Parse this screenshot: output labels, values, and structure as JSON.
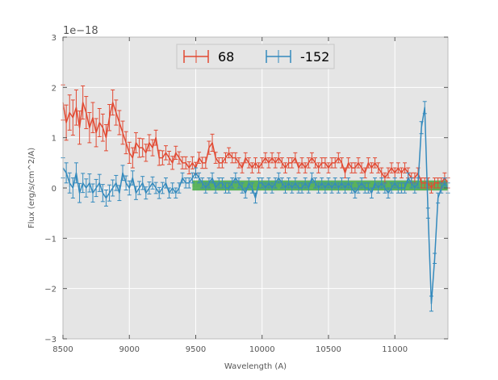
{
  "chart_data": {
    "type": "line",
    "title": "",
    "xlabel": "Wavelength (A)",
    "ylabel": "Flux (erg/s/cm^2/A)",
    "y_offset_text": "1e−18",
    "xlim": [
      8500,
      11400
    ],
    "ylim": [
      -3,
      3
    ],
    "x_ticks": [
      8500,
      9000,
      9500,
      10000,
      10500,
      11000
    ],
    "y_ticks": [
      -3,
      -2,
      -1,
      0,
      1,
      2,
      3
    ],
    "x_tick_labels": [
      "8500",
      "9000",
      "9500",
      "10000",
      "10500",
      "11000"
    ],
    "y_tick_labels": [
      "−3",
      "−2",
      "−1",
      "0",
      "1",
      "2",
      "3"
    ],
    "grid": true,
    "legend_position": "top-center",
    "background_color": "#e5e5e5",
    "series": [
      {
        "name": "68",
        "color": "#e24a33",
        "x": [
          8500,
          8525,
          8550,
          8575,
          8600,
          8625,
          8650,
          8675,
          8700,
          8725,
          8750,
          8775,
          8800,
          8825,
          8850,
          8875,
          8900,
          8925,
          8950,
          8975,
          9000,
          9025,
          9050,
          9075,
          9100,
          9125,
          9150,
          9175,
          9200,
          9225,
          9250,
          9275,
          9300,
          9325,
          9350,
          9375,
          9400,
          9425,
          9450,
          9475,
          9500,
          9525,
          9550,
          9575,
          9600,
          9625,
          9650,
          9675,
          9700,
          9725,
          9750,
          9775,
          9800,
          9825,
          9850,
          9875,
          9900,
          9925,
          9950,
          9975,
          10000,
          10025,
          10050,
          10075,
          10100,
          10125,
          10150,
          10175,
          10200,
          10225,
          10250,
          10275,
          10300,
          10325,
          10350,
          10375,
          10400,
          10425,
          10450,
          10475,
          10500,
          10525,
          10550,
          10575,
          10600,
          10625,
          10650,
          10675,
          10700,
          10725,
          10750,
          10775,
          10800,
          10825,
          10850,
          10875,
          10900,
          10925,
          10950,
          10975,
          11000,
          11025,
          11050,
          11075,
          11100,
          11125,
          11150,
          11175,
          11200,
          11225,
          11250,
          11275,
          11300,
          11325,
          11350,
          11375,
          11400
        ],
        "y": [
          1.7,
          1.3,
          1.5,
          1.4,
          1.6,
          1.2,
          1.7,
          1.5,
          1.2,
          1.4,
          1.1,
          1.3,
          1.2,
          1.0,
          1.4,
          1.7,
          1.5,
          1.3,
          1.1,
          0.9,
          0.7,
          0.6,
          0.9,
          0.8,
          0.8,
          0.7,
          0.9,
          0.8,
          1.0,
          0.6,
          0.6,
          0.7,
          0.6,
          0.5,
          0.7,
          0.6,
          0.5,
          0.5,
          0.4,
          0.5,
          0.4,
          0.6,
          0.5,
          0.5,
          0.8,
          0.9,
          0.6,
          0.5,
          0.5,
          0.6,
          0.7,
          0.6,
          0.6,
          0.5,
          0.4,
          0.6,
          0.5,
          0.4,
          0.5,
          0.4,
          0.5,
          0.6,
          0.5,
          0.6,
          0.5,
          0.6,
          0.5,
          0.4,
          0.5,
          0.5,
          0.6,
          0.4,
          0.5,
          0.4,
          0.5,
          0.6,
          0.5,
          0.4,
          0.5,
          0.5,
          0.4,
          0.5,
          0.5,
          0.6,
          0.5,
          0.3,
          0.5,
          0.4,
          0.4,
          0.5,
          0.4,
          0.3,
          0.5,
          0.4,
          0.5,
          0.4,
          0.3,
          0.2,
          0.3,
          0.4,
          0.3,
          0.4,
          0.3,
          0.4,
          0.3,
          0.2,
          0.2,
          0.3,
          0.1,
          0.1,
          0.1,
          0.0,
          0.1,
          0.1,
          0.1,
          0.2,
          0.1
        ],
        "error": [
          0.35,
          0.35,
          0.35,
          0.35,
          0.35,
          0.33,
          0.33,
          0.32,
          0.3,
          0.3,
          0.28,
          0.28,
          0.27,
          0.26,
          0.26,
          0.25,
          0.25,
          0.24,
          0.23,
          0.22,
          0.21,
          0.2,
          0.2,
          0.19,
          0.18,
          0.17,
          0.16,
          0.16,
          0.15,
          0.15,
          0.14,
          0.14,
          0.13,
          0.13,
          0.13,
          0.12,
          0.12,
          0.12,
          0.12,
          0.12,
          0.11,
          0.11,
          0.11,
          0.11,
          0.13,
          0.17,
          0.11,
          0.1,
          0.1,
          0.1,
          0.1,
          0.1,
          0.1,
          0.1,
          0.1,
          0.1,
          0.1,
          0.1,
          0.1,
          0.1,
          0.1,
          0.1,
          0.1,
          0.1,
          0.1,
          0.1,
          0.1,
          0.1,
          0.1,
          0.1,
          0.1,
          0.1,
          0.1,
          0.1,
          0.1,
          0.1,
          0.1,
          0.1,
          0.1,
          0.1,
          0.1,
          0.1,
          0.1,
          0.1,
          0.1,
          0.1,
          0.1,
          0.1,
          0.1,
          0.1,
          0.1,
          0.1,
          0.1,
          0.1,
          0.1,
          0.1,
          0.1,
          0.1,
          0.1,
          0.1,
          0.1,
          0.1,
          0.1,
          0.1,
          0.1,
          0.1,
          0.1,
          0.1,
          0.1,
          0.1,
          0.1,
          0.1,
          0.1,
          0.1,
          0.1,
          0.1,
          0.1
        ]
      },
      {
        "name": "-152",
        "color": "#348abd",
        "x": [
          8500,
          8525,
          8550,
          8575,
          8600,
          8625,
          8650,
          8675,
          8700,
          8725,
          8750,
          8775,
          8800,
          8825,
          8850,
          8875,
          8900,
          8925,
          8950,
          8975,
          9000,
          9025,
          9050,
          9075,
          9100,
          9125,
          9150,
          9175,
          9200,
          9225,
          9250,
          9275,
          9300,
          9325,
          9350,
          9375,
          9400,
          9425,
          9450,
          9475,
          9500,
          9525,
          9550,
          9575,
          9600,
          9625,
          9650,
          9675,
          9700,
          9725,
          9750,
          9775,
          9800,
          9825,
          9850,
          9875,
          9900,
          9925,
          9950,
          9975,
          10000,
          10025,
          10050,
          10075,
          10100,
          10125,
          10150,
          10175,
          10200,
          10225,
          10250,
          10275,
          10300,
          10325,
          10350,
          10375,
          10400,
          10425,
          10450,
          10475,
          10500,
          10525,
          10550,
          10575,
          10600,
          10625,
          10650,
          10675,
          10700,
          10725,
          10750,
          10775,
          10800,
          10825,
          10850,
          10875,
          10900,
          10925,
          10950,
          10975,
          11000,
          11025,
          11050,
          11075,
          11100,
          11125,
          11150,
          11175,
          11200,
          11225,
          11250,
          11275,
          11300,
          11325,
          11350,
          11375,
          11400
        ],
        "y": [
          0.4,
          0.3,
          0.1,
          0.0,
          0.3,
          -0.1,
          0.1,
          0.0,
          0.1,
          -0.1,
          0.0,
          0.1,
          -0.1,
          -0.2,
          -0.1,
          0.0,
          0.1,
          -0.1,
          0.3,
          0.1,
          0.0,
          0.2,
          -0.1,
          0.0,
          0.1,
          -0.1,
          0.0,
          0.1,
          0.0,
          -0.1,
          0.0,
          0.1,
          -0.1,
          0.0,
          -0.1,
          0.0,
          0.2,
          0.1,
          0.1,
          0.2,
          0.3,
          0.2,
          0.1,
          0.0,
          0.1,
          0.2,
          0.0,
          0.1,
          0.1,
          0.0,
          0.0,
          0.1,
          0.2,
          0.1,
          0.0,
          -0.1,
          0.1,
          0.0,
          -0.2,
          0.1,
          0.1,
          0.0,
          0.1,
          0.0,
          0.1,
          0.2,
          0.1,
          0.0,
          0.1,
          0.0,
          0.1,
          0.0,
          0.0,
          0.1,
          0.0,
          0.2,
          0.1,
          0.0,
          0.1,
          0.0,
          0.1,
          0.0,
          0.1,
          0.0,
          0.1,
          0.0,
          0.1,
          0.0,
          -0.1,
          0.0,
          0.1,
          0.0,
          0.0,
          -0.1,
          0.1,
          0.0,
          0.1,
          0.0,
          -0.1,
          0.0,
          0.1,
          0.0,
          0.0,
          0.0,
          0.2,
          0.1,
          0.0,
          0.1,
          1.2,
          1.6,
          -0.5,
          -2.3,
          -1.4,
          -0.2,
          0.0,
          0.1,
          0.0
        ],
        "error": [
          0.2,
          0.2,
          0.2,
          0.2,
          0.2,
          0.19,
          0.19,
          0.18,
          0.18,
          0.18,
          0.17,
          0.17,
          0.17,
          0.16,
          0.16,
          0.16,
          0.15,
          0.15,
          0.15,
          0.14,
          0.14,
          0.14,
          0.13,
          0.13,
          0.13,
          0.12,
          0.12,
          0.12,
          0.11,
          0.11,
          0.11,
          0.1,
          0.1,
          0.1,
          0.1,
          0.1,
          0.1,
          0.1,
          0.1,
          0.1,
          0.1,
          0.1,
          0.1,
          0.1,
          0.1,
          0.1,
          0.1,
          0.1,
          0.1,
          0.1,
          0.1,
          0.1,
          0.1,
          0.1,
          0.1,
          0.1,
          0.1,
          0.1,
          0.1,
          0.1,
          0.1,
          0.1,
          0.1,
          0.1,
          0.1,
          0.1,
          0.1,
          0.1,
          0.1,
          0.1,
          0.1,
          0.1,
          0.1,
          0.1,
          0.1,
          0.1,
          0.1,
          0.1,
          0.1,
          0.1,
          0.1,
          0.1,
          0.1,
          0.1,
          0.1,
          0.1,
          0.1,
          0.1,
          0.1,
          0.1,
          0.1,
          0.1,
          0.1,
          0.1,
          0.1,
          0.1,
          0.1,
          0.1,
          0.1,
          0.1,
          0.1,
          0.1,
          0.1,
          0.1,
          0.1,
          0.1,
          0.1,
          0.1,
          0.12,
          0.12,
          0.1,
          0.15,
          0.1,
          0.1,
          0.1,
          0.1,
          0.1
        ]
      }
    ],
    "band": {
      "color": "#2ca02c",
      "x_start": 9475,
      "x_end": 11400,
      "y_low": -0.05,
      "y_high": 0.15
    }
  }
}
